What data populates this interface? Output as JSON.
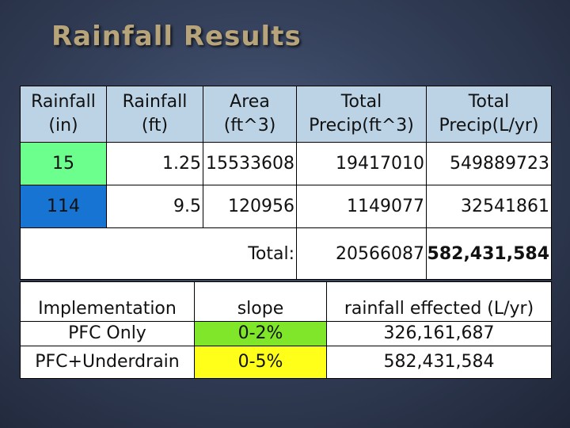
{
  "title": "Rainfall Results",
  "colors": {
    "header_bg": "#bcd3e6",
    "green": "#6cff8e",
    "blue": "#1874d2",
    "bright_green": "#7fe62a",
    "yellow": "#ffff1a",
    "title": "#b8a47a"
  },
  "rain_table": {
    "headers": [
      {
        "line1": "Rainfall",
        "line2": "(in)"
      },
      {
        "line1": "Rainfall",
        "line2": "(ft)"
      },
      {
        "line1": "Area",
        "line2": "(ft^3)"
      },
      {
        "line1": "Total",
        "line2": "Precip(ft^3)"
      },
      {
        "line1": "Total",
        "line2": "Precip(L/yr)"
      }
    ],
    "rows": [
      {
        "in": "15",
        "ft": "1.25",
        "area": "15533608",
        "precip_ft3": "19417010",
        "precip_lyr": "549889723"
      },
      {
        "in": "114",
        "ft": "9.5",
        "area": "120956",
        "precip_ft3": "1149077",
        "precip_lyr": "32541861"
      }
    ],
    "total_label": "Total:",
    "total_ft3": "20566087",
    "total_lyr": "582,431,584"
  },
  "impl_table": {
    "header": {
      "implementation": "Implementation",
      "slope": "slope",
      "effected": "rainfall effected (L/yr)"
    },
    "rows": [
      {
        "implementation": "PFC Only",
        "slope": "0-2%",
        "effected": "326,161,687"
      },
      {
        "implementation": "PFC+Underdrain",
        "slope": "0-5%",
        "effected": "582,431,584"
      }
    ]
  }
}
